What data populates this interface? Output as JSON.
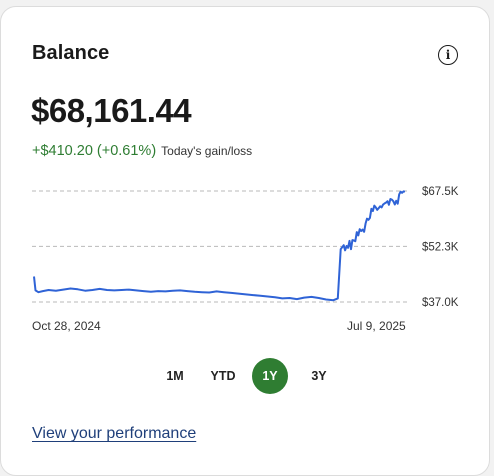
{
  "card": {
    "title": "Balance",
    "info_icon": "info-icon",
    "balance": "$68,161.44",
    "gain": "+$410.20 (+0.61%)",
    "gain_label": "Today's gain/loss",
    "gain_color": "#2e7d32",
    "line_color": "#2f63d6"
  },
  "chart_data": {
    "type": "line",
    "title": "",
    "xlabel": "",
    "ylabel": "",
    "x_start": "Oct 28, 2024",
    "x_end": "Jul 9, 2025",
    "x_range": [
      0,
      254
    ],
    "ylim": [
      37000,
      67500
    ],
    "y_ticks": [
      {
        "value": 67500,
        "label": "$67.5K"
      },
      {
        "value": 52300,
        "label": "$52.3K"
      },
      {
        "value": 37000,
        "label": "$37.0K"
      }
    ],
    "grid": true,
    "series": [
      {
        "x": [
          0,
          1,
          3,
          6,
          10,
          15,
          20,
          25,
          30,
          35,
          40,
          45,
          50,
          55,
          60,
          65,
          70,
          75,
          80,
          85,
          90,
          95,
          100,
          105,
          110,
          115,
          120,
          125,
          130,
          135,
          140,
          145,
          150,
          155,
          160,
          165,
          170,
          175,
          180,
          185,
          190,
          195,
          200,
          205,
          208,
          210,
          212,
          213,
          214,
          215,
          216,
          217,
          218,
          219,
          220,
          221,
          222,
          223,
          224,
          225,
          226,
          227,
          228,
          229,
          230,
          231,
          232,
          233,
          234,
          235,
          236,
          237,
          238,
          239,
          240,
          241,
          242,
          243,
          244,
          245,
          246,
          247,
          248,
          249,
          250,
          251,
          252,
          253,
          254
        ],
        "values": [
          44000,
          40200,
          39700,
          40000,
          40300,
          40100,
          40400,
          40700,
          40500,
          40100,
          40300,
          40600,
          40300,
          40200,
          40300,
          40400,
          40200,
          40000,
          39800,
          40000,
          39900,
          40100,
          40200,
          40000,
          39800,
          39700,
          39600,
          39900,
          39700,
          39500,
          39300,
          39100,
          38900,
          38700,
          38500,
          38300,
          38000,
          38100,
          37800,
          38200,
          38400,
          38100,
          37700,
          37500,
          38000,
          51500,
          52600,
          51200,
          52400,
          51900,
          53800,
          51500,
          54000,
          53900,
          53700,
          56200,
          55300,
          57000,
          56500,
          56900,
          56300,
          58600,
          59900,
          59600,
          60100,
          62600,
          62000,
          63500,
          63000,
          62300,
          62800,
          63300,
          63000,
          63800,
          64100,
          64300,
          64700,
          63700,
          65300,
          65100,
          64700,
          63800,
          64800,
          64000,
          66600,
          67300,
          67000,
          67400,
          67300
        ]
      }
    ]
  },
  "ranges": {
    "items": [
      {
        "label": "1M",
        "active": false
      },
      {
        "label": "YTD",
        "active": false
      },
      {
        "label": "1Y",
        "active": true
      },
      {
        "label": "3Y",
        "active": false
      }
    ]
  },
  "link": {
    "label": "View your performance"
  }
}
